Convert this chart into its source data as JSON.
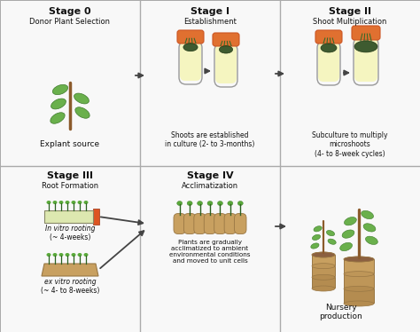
{
  "bg_color": "#f0f0f0",
  "cell_bg": "#f8f8f8",
  "grid_color": "#aaaaaa",
  "title_color": "#111111",
  "arrow_color": "#444444",
  "tube_fill": "#f5f5c0",
  "tube_cap": "#e07030",
  "tube_outline": "#999999",
  "plant_stem": "#8B5A2B",
  "plant_leaf": "#6ab04c",
  "plant_leaf_dark": "#3d7a2a",
  "tray_fill": "#c8a060",
  "tray_outline": "#997744",
  "pot_fill": "#c8a060",
  "pot_outline": "#997744",
  "stage0_title": "Stage 0",
  "stage0_sub": "Donor Plant Selection",
  "stage0_desc": "Explant source",
  "stage1_title": "Stage I",
  "stage1_sub": "Establishment",
  "stage1_desc": "Shoots are established\nin culture (2- to 3-months)",
  "stage2_title": "Stage II",
  "stage2_sub": "Shoot Multiplication",
  "stage2_desc": "Subculture to multiply\nmicroshoots\n(4- to 8-week cycles)",
  "stage3_title": "Stage III",
  "stage3_sub": "Root Formation",
  "stage3_invitro": "In vitro rooting",
  "stage3_invitro2": "(~ 4-weeks)",
  "stage3_exvitro": "ex vitro rooting",
  "stage3_exvitro2": "(~ 4- to 8-weeks)",
  "stage4_title": "Stage IV",
  "stage4_sub": "Acclimatization",
  "stage4_desc": "Plants are gradually\nacclimatized to ambient\nenvironmental conditions\nand moved to unit cells",
  "nursery_label": "Nursery\nproduction"
}
